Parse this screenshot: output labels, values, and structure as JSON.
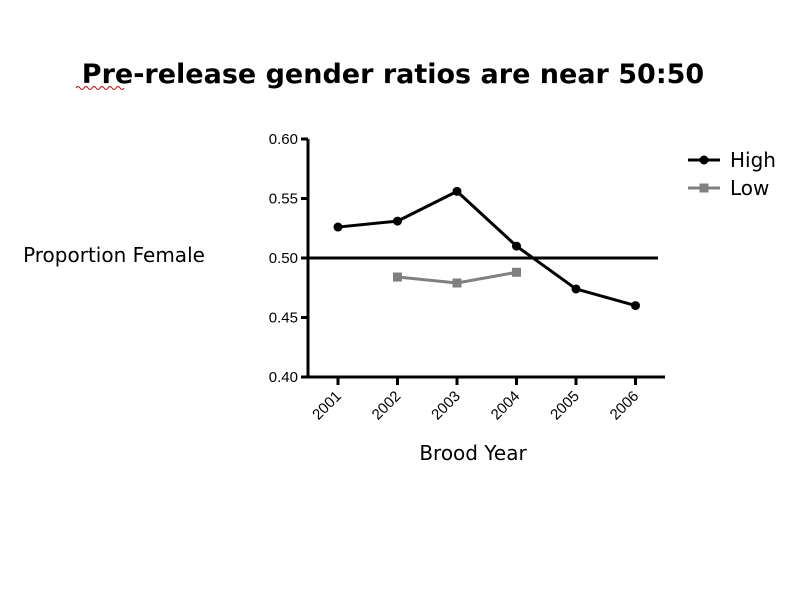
{
  "chart_data": {
    "type": "line",
    "title": "Pre-release gender ratios are near 50:50",
    "xlabel": "Brood Year",
    "ylabel": "Proportion Female",
    "categories": [
      "2001",
      "2002",
      "2003",
      "2004",
      "2005",
      "2006"
    ],
    "ylim": [
      0.4,
      0.6
    ],
    "yticks": [
      "0.40",
      "0.45",
      "0.50",
      "0.55",
      "0.60"
    ],
    "reference_line": 0.5,
    "grid": false,
    "legend_position": "top-right",
    "series": [
      {
        "name": "High",
        "color": "#000000",
        "marker": "circle",
        "values": [
          0.526,
          0.531,
          0.556,
          0.51,
          0.474,
          0.46
        ]
      },
      {
        "name": "Low",
        "color": "#808080",
        "marker": "square",
        "values": [
          null,
          0.484,
          0.479,
          0.488,
          null,
          null
        ]
      }
    ]
  }
}
